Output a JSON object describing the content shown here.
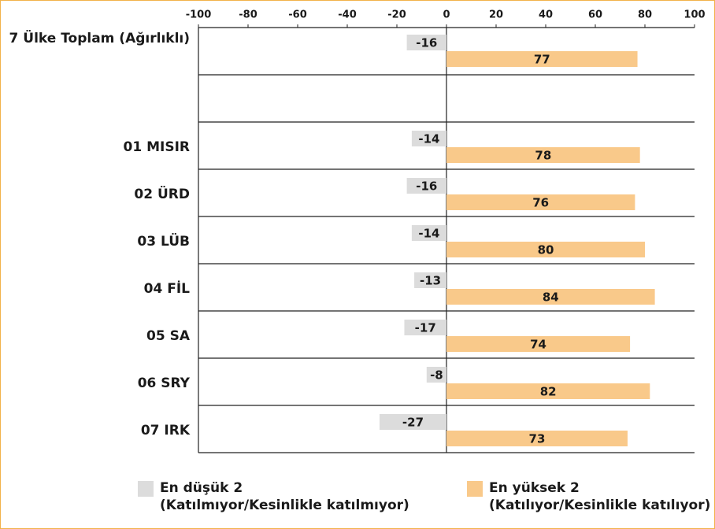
{
  "chart_data": {
    "type": "bar",
    "orientation": "horizontal",
    "categories": [
      "7 Ülke Toplam (Ağırlıklı)",
      null,
      "01 MISIR",
      "02 ÜRD",
      "03 LÜB",
      "04 FİL",
      "05 SA",
      "06 SRY",
      "07 IRK"
    ],
    "series": [
      {
        "name": "En düşük 2\n(Katılmıyor/Kesinlikle katılmıyor)",
        "color": "#dcdcdc",
        "values": [
          -16,
          null,
          -14,
          -16,
          -14,
          -13,
          -17,
          -8,
          -27
        ]
      },
      {
        "name": "En yüksek 2\n(Katılıyor/Kesinlikle katılıyor)",
        "color": "#f9c98a",
        "values": [
          77,
          null,
          78,
          76,
          80,
          84,
          74,
          82,
          73
        ]
      }
    ],
    "xlim": [
      -100,
      100
    ],
    "xticks": [
      -100,
      -80,
      -60,
      -40,
      -20,
      0,
      20,
      40,
      60,
      80,
      100
    ]
  }
}
